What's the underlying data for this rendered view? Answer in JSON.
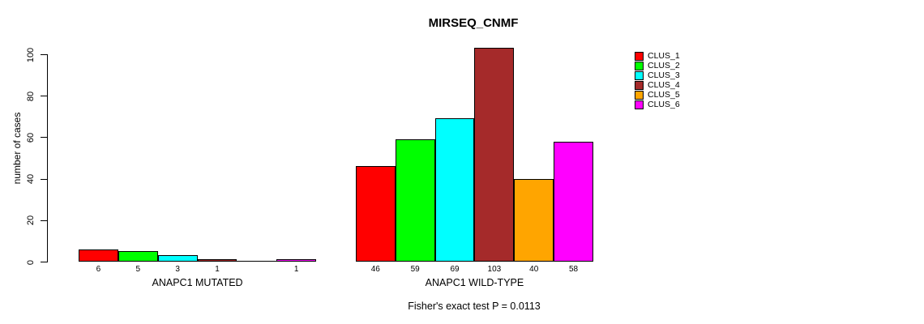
{
  "title": "MIRSEQ_CNMF",
  "y_axis": {
    "label": "number of cases"
  },
  "footnote": "Fisher's exact test P = 0.0113",
  "chart_data": {
    "type": "bar",
    "title": "MIRSEQ_CNMF",
    "ylabel": "number of cases",
    "ylim": [
      0,
      100
    ],
    "yticks": [
      0,
      20,
      40,
      60,
      80,
      100
    ],
    "grid": false,
    "legend_position": "right",
    "bar_outline_color": "#000000",
    "series": [
      {
        "name": "CLUS_1",
        "color": "#FF0000"
      },
      {
        "name": "CLUS_2",
        "color": "#00FF00"
      },
      {
        "name": "CLUS_3",
        "color": "#00FFFF"
      },
      {
        "name": "CLUS_4",
        "color": "#A52A2A"
      },
      {
        "name": "CLUS_5",
        "color": "#FFA500"
      },
      {
        "name": "CLUS_6",
        "color": "#FF00FF"
      }
    ],
    "groups": [
      {
        "label": "ANAPC1 MUTATED",
        "values": [
          6,
          5,
          3,
          1,
          0,
          1
        ]
      },
      {
        "label": "ANAPC1 WILD-TYPE",
        "values": [
          46,
          59,
          69,
          103,
          40,
          58
        ]
      }
    ],
    "annotation": "Fisher's exact test P = 0.0113"
  }
}
